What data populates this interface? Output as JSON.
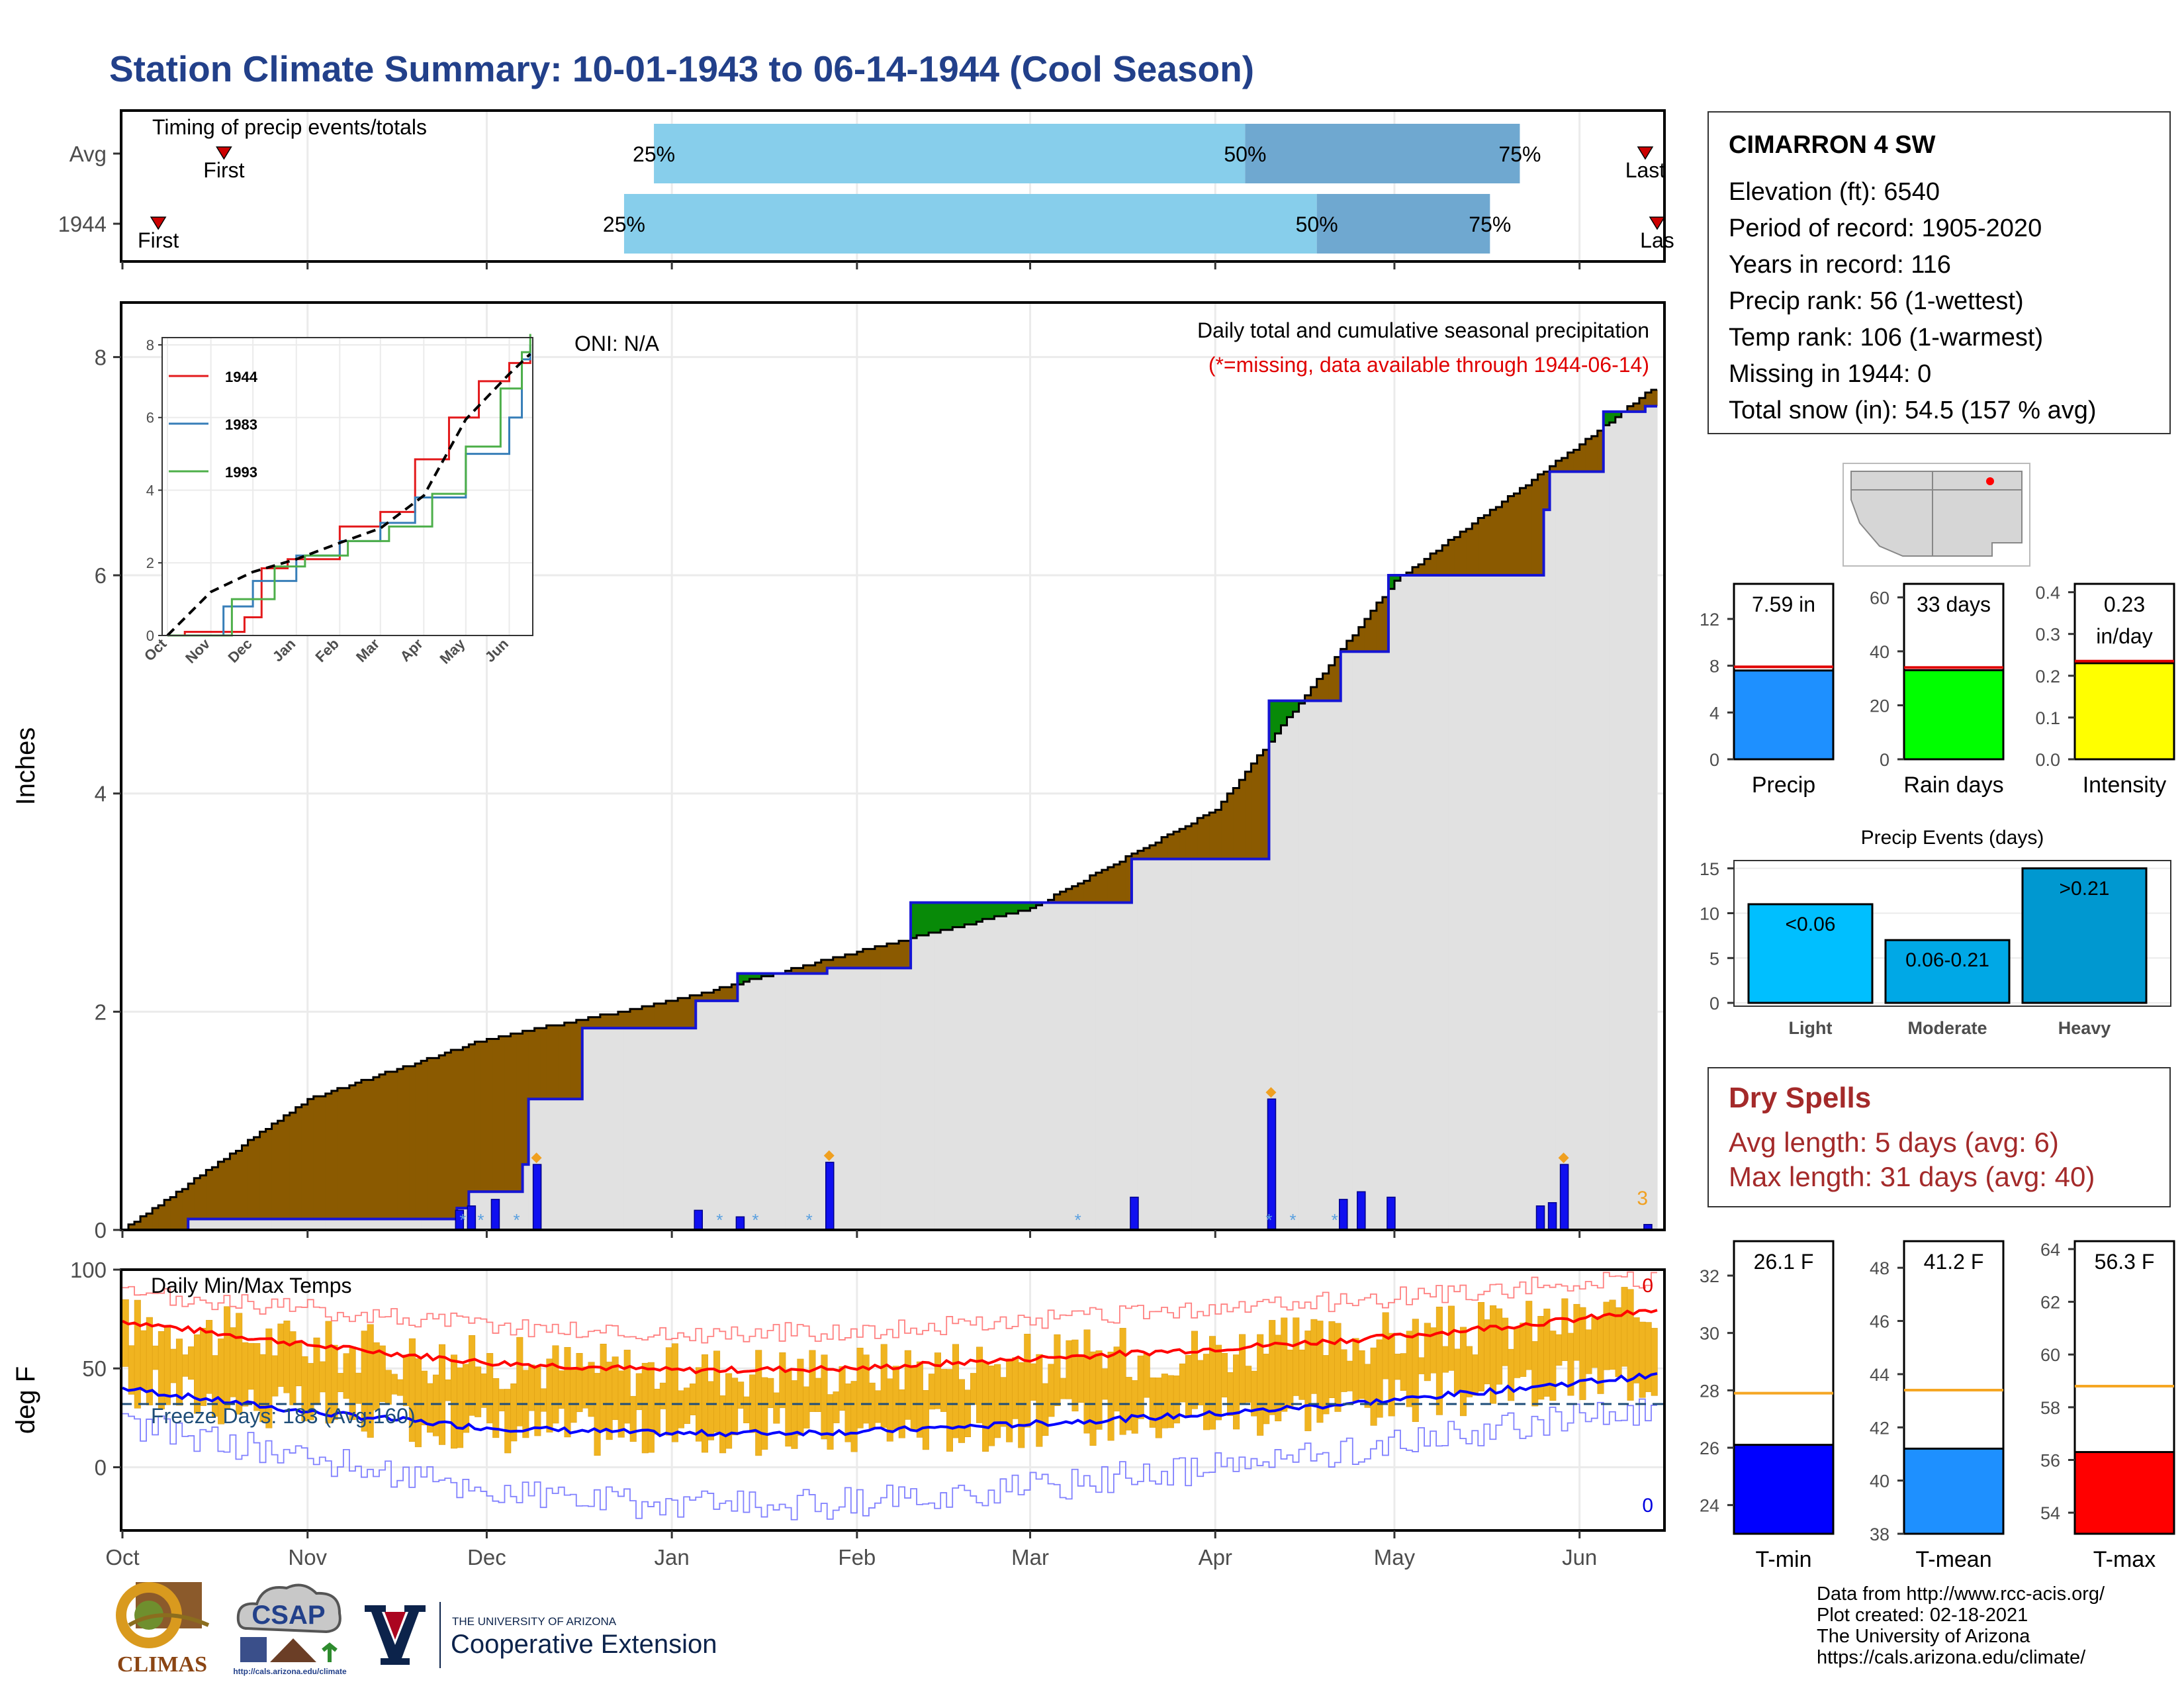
{
  "title": "Station Climate Summary: 10-01-1943 to 06-14-1944 (Cool Season)",
  "timing": {
    "label": "Timing of precip events/totals",
    "rows": [
      {
        "name": "Avg",
        "first_label": "First",
        "last_label": "Last",
        "p25": "25%",
        "p50": "50%",
        "p75": "75%",
        "first_day": 17,
        "p25_day": 89,
        "p50_day": 188,
        "p75_day": 234,
        "last_day": 255
      },
      {
        "name": "1944",
        "first_label": "First",
        "last_label": "Las",
        "p25": "25%",
        "p50": "50%",
        "p75": "75%",
        "first_day": 6,
        "p25_day": 84,
        "p50_day": 200,
        "p75_day": 229,
        "last_day": 257
      }
    ],
    "colors": {
      "light": "#87ceeb",
      "dark": "#6fa8d0",
      "marker": "#cc0000"
    }
  },
  "main": {
    "ylabel": "Inches",
    "oni": "ONI: N/A",
    "title_line": "Daily total and cumulative seasonal precipitation",
    "missing_note": "(*=missing, data available through 1944-06-14)",
    "count_label": "3"
  },
  "temp": {
    "ylabel": "deg F",
    "label": "Daily Min/Max Temps",
    "freeze_label": "Freeze Days: 183 (Avg:160)",
    "max_count": "0",
    "min_count": "0"
  },
  "station": {
    "name": "CIMARRON 4 SW",
    "lines": [
      "Elevation (ft): 6540",
      "Period of record: 1905-2020",
      "Years in record: 116",
      "Precip rank: 56 (1-wettest)",
      "Temp rank: 106 (1-warmest)",
      "Missing in 1944: 0",
      "Total snow (in): 54.5 (157 % avg)"
    ]
  },
  "dry_spells": {
    "title": "Dry Spells",
    "avg": "Avg length: 5 days (avg: 6)",
    "max": "Max length: 31 days (avg: 40)"
  },
  "credits": [
    "Data from http://www.rcc-acis.org/",
    "Plot created: 02-18-2021",
    "The University of Arizona",
    "https://cals.arizona.edu/climate/"
  ],
  "logos": {
    "climas": "CLIMAS",
    "csap": "CSAP",
    "csap_url": "http://cals.arizona.edu/climate",
    "ua_small": "THE UNIVERSITY OF ARIZONA",
    "ua_big": "Cooperative Extension"
  },
  "chart_data": [
    {
      "type": "area",
      "name": "Daily total and cumulative seasonal precipitation",
      "x_ticks": [
        "Oct",
        "Nov",
        "Dec",
        "Jan",
        "Feb",
        "Mar",
        "Apr",
        "May",
        "Jun"
      ],
      "ylabel": "Inches",
      "ylim": [
        0,
        8.5
      ],
      "y_ticks": [
        0,
        2,
        4,
        6,
        8
      ],
      "cumulative_1944": {
        "dates": [
          "1943-10-01",
          "1943-10-12",
          "1943-11-26",
          "1943-11-28",
          "1943-12-07",
          "1943-12-08",
          "1943-12-17",
          "1944-01-05",
          "1944-01-12",
          "1944-01-27",
          "1944-02-10",
          "1944-03-18",
          "1944-04-10",
          "1944-04-22",
          "1944-04-30",
          "1944-05-26",
          "1944-05-27",
          "1944-06-05",
          "1944-06-12",
          "1944-06-14"
        ],
        "values": [
          0.0,
          0.1,
          0.2,
          0.35,
          0.6,
          1.2,
          1.85,
          2.1,
          2.35,
          2.4,
          3.0,
          3.4,
          4.85,
          5.3,
          6.0,
          6.6,
          6.95,
          7.5,
          7.55,
          7.59
        ]
      },
      "average_cumulative": {
        "dates": [
          "1943-10-01",
          "1943-11-01",
          "1943-12-01",
          "1944-01-01",
          "1944-02-01",
          "1944-03-01",
          "1944-04-01",
          "1944-05-01",
          "1944-06-01",
          "1944-06-14"
        ],
        "values": [
          0.0,
          1.2,
          1.75,
          2.1,
          2.55,
          2.95,
          3.85,
          5.95,
          7.2,
          7.75
        ]
      },
      "daily_bars": {
        "dates": [
          "1943-11-26",
          "1943-11-28",
          "1943-12-02",
          "1943-12-09",
          "1944-01-05",
          "1944-01-12",
          "1944-01-27",
          "1944-03-18",
          "1944-04-10",
          "1944-04-22",
          "1944-04-25",
          "1944-04-30",
          "1944-05-25",
          "1944-05-27",
          "1944-05-29",
          "1944-06-12"
        ],
        "values": [
          0.18,
          0.22,
          0.28,
          0.6,
          0.18,
          0.12,
          0.62,
          0.3,
          1.2,
          0.28,
          0.35,
          0.3,
          0.22,
          0.25,
          0.6,
          0.05
        ]
      },
      "annotation": "ONI: N/A",
      "colors": {
        "above_avg": "#088a08",
        "below_avg": "#8b5a00",
        "year_line": "#1515d4",
        "base": "#e1e1e1"
      }
    },
    {
      "type": "line",
      "name": "inset cumulative comparison",
      "x_ticks": [
        "Oct",
        "Nov",
        "Dec",
        "Jan",
        "Feb",
        "Mar",
        "Apr",
        "May",
        "Jun"
      ],
      "ylim": [
        0,
        8.2
      ],
      "y_ticks": [
        0,
        2,
        4,
        6,
        8
      ],
      "series": [
        {
          "name": "1944",
          "color": "#e31a1c",
          "x_month": [
            0,
            0.4,
            1.8,
            2.2,
            2.8,
            4,
            5,
            5.8,
            6.6,
            7.3,
            8,
            8.5
          ],
          "values": [
            0,
            0.1,
            0.5,
            1.85,
            2.1,
            3.0,
            3.4,
            4.85,
            6.0,
            7.0,
            7.5,
            7.59
          ]
        },
        {
          "name": "1983",
          "color": "#377eb8",
          "x_month": [
            0,
            1.3,
            2,
            3,
            4,
            5,
            5.8,
            7,
            8,
            8.3,
            8.5
          ],
          "values": [
            0,
            0.8,
            1.5,
            2.2,
            2.6,
            3.1,
            3.8,
            5.0,
            6.0,
            7.6,
            8.0
          ]
        },
        {
          "name": "1993",
          "color": "#4daf4a",
          "x_month": [
            0,
            1.5,
            2.5,
            3.2,
            4.2,
            5.2,
            6.2,
            7,
            7.8,
            8.3,
            8.5
          ],
          "values": [
            0,
            1.0,
            1.9,
            2.2,
            2.6,
            3.0,
            3.9,
            5.2,
            6.8,
            7.8,
            8.3
          ]
        },
        {
          "name": "avg",
          "color": "#000000",
          "dashed": true,
          "x_month": [
            0,
            1,
            2,
            3,
            4,
            5,
            6,
            7,
            8,
            8.5
          ],
          "values": [
            0,
            1.2,
            1.75,
            2.1,
            2.55,
            2.95,
            3.85,
            5.95,
            7.2,
            7.75
          ]
        }
      ]
    },
    {
      "type": "bar",
      "name": "Precip",
      "value": 7.59,
      "value_label": "7.59 in",
      "avg": 7.9,
      "ylim": [
        0,
        15
      ],
      "y_ticks": [
        0,
        4,
        8,
        12
      ],
      "color": "#1e90ff",
      "xlabel": "Precip"
    },
    {
      "type": "bar",
      "name": "Rain days",
      "value": 33,
      "value_label": "33 days",
      "avg": 34,
      "ylim": [
        0,
        65
      ],
      "y_ticks": [
        0,
        20,
        40,
        60
      ],
      "color": "#00ff00",
      "xlabel": "Rain days"
    },
    {
      "type": "bar",
      "name": "Intensity",
      "value": 0.23,
      "value_label": "0.23",
      "unit_label": "in/day",
      "avg": 0.235,
      "ylim": [
        0,
        0.42
      ],
      "y_ticks": [
        0.0,
        0.1,
        0.2,
        0.3,
        0.4
      ],
      "color": "#ffff00",
      "xlabel": "Intensity"
    },
    {
      "type": "bar",
      "title": "Precip Events (days)",
      "categories": [
        "Light",
        "Moderate",
        "Heavy"
      ],
      "values": [
        11,
        7,
        15
      ],
      "bar_labels": [
        "<0.06",
        "0.06-0.21",
        ">0.21"
      ],
      "ylim": [
        0,
        15.5
      ],
      "y_ticks": [
        0,
        5,
        10,
        15
      ],
      "colors": [
        "#00bfff",
        "#00a8e6",
        "#0098d0"
      ]
    },
    {
      "type": "bar",
      "name": "T-min",
      "value": 26.1,
      "value_label": "26.1 F",
      "avg": 27.9,
      "ylim": [
        23.0,
        33.2
      ],
      "y_ticks": [
        24,
        26,
        28,
        30,
        32
      ],
      "color": "#0000ff",
      "xlabel": "T-min"
    },
    {
      "type": "bar",
      "name": "T-mean",
      "value": 41.2,
      "value_label": "41.2 F",
      "avg": 43.4,
      "ylim": [
        38.0,
        49.0
      ],
      "y_ticks": [
        38,
        40,
        42,
        44,
        46,
        48
      ],
      "color": "#1e90ff",
      "xlabel": "T-mean"
    },
    {
      "type": "bar",
      "name": "T-max",
      "value": 56.3,
      "value_label": "56.3 F",
      "avg": 58.8,
      "ylim": [
        53.2,
        64.3
      ],
      "y_ticks": [
        54,
        56,
        58,
        60,
        62,
        64
      ],
      "color": "#ff0000",
      "xlabel": "T-max"
    },
    {
      "type": "line",
      "name": "Daily Min/Max Temps",
      "ylabel": "deg F",
      "ylim": [
        -32,
        100
      ],
      "y_ticks": [
        0,
        50,
        100
      ],
      "x_ticks": [
        "Oct",
        "Nov",
        "Dec",
        "Jan",
        "Feb",
        "Mar",
        "Apr",
        "May",
        "Jun"
      ],
      "freeze_line": 32,
      "series": [
        {
          "name": "avg max",
          "color": "#ff0000",
          "x_month": [
            0,
            1,
            2,
            3,
            4,
            5,
            6,
            7,
            8,
            8.5
          ],
          "values": [
            74,
            62,
            53,
            49,
            50,
            55,
            60,
            66,
            75,
            80
          ]
        },
        {
          "name": "avg min",
          "color": "#0000ff",
          "x_month": [
            0,
            1,
            2,
            3,
            4,
            5,
            6,
            7,
            8,
            8.5
          ],
          "values": [
            40,
            28,
            20,
            17,
            18,
            22,
            27,
            34,
            43,
            47
          ]
        },
        {
          "name": "record max",
          "color": "#ff8080",
          "x_month": [
            0,
            1,
            2,
            3,
            4,
            5,
            6,
            7,
            8,
            8.5
          ],
          "values": [
            87,
            80,
            72,
            67,
            69,
            74,
            80,
            86,
            93,
            96
          ]
        },
        {
          "name": "record min",
          "color": "#8080ff",
          "x_month": [
            0,
            1,
            2,
            3,
            4,
            5,
            6,
            7,
            8,
            8.5
          ],
          "values": [
            22,
            5,
            -12,
            -20,
            -18,
            -10,
            0,
            12,
            25,
            30
          ]
        }
      ]
    }
  ]
}
